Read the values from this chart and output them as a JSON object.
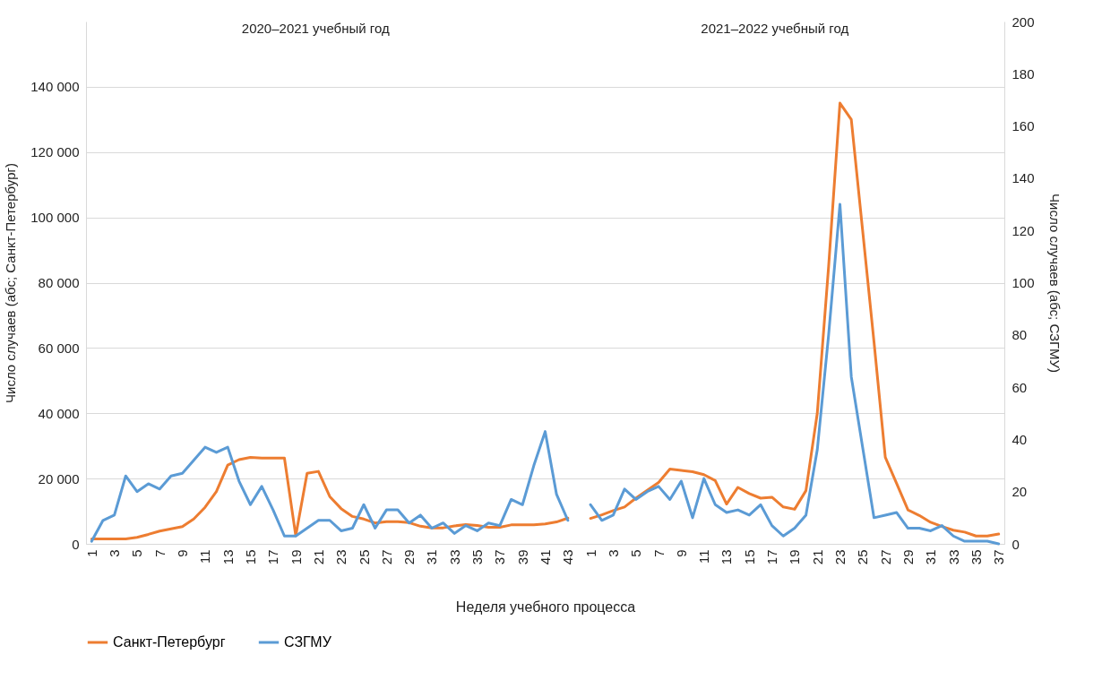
{
  "chart_data": {
    "type": "line",
    "annotations": [
      "2020–2021 учебный год",
      "2021–2022 учебный год"
    ],
    "xlabel": "Неделя учебного процесса",
    "ylabel": "Число случаев (абс; Санкт-Петербург)",
    "y2label": "Число случаев (абс; СЗГМУ)",
    "categories": [
      "1",
      null,
      "3",
      null,
      "5",
      null,
      "7",
      null,
      "9",
      null,
      "11",
      null,
      "13",
      null,
      "15",
      null,
      "17",
      null,
      "19",
      null,
      "21",
      null,
      "23",
      null,
      "25",
      null,
      "27",
      null,
      "29",
      null,
      "31",
      null,
      "33",
      null,
      "35",
      null,
      "37",
      null,
      "39",
      null,
      "41",
      null,
      "43",
      null,
      "1",
      null,
      "3",
      null,
      "5",
      null,
      "7",
      null,
      "9",
      null,
      "11",
      null,
      "13",
      null,
      "15",
      null,
      "17",
      null,
      "19",
      null,
      "21",
      null,
      "23",
      null,
      "25",
      null,
      "27",
      null,
      "29",
      null,
      "31",
      null,
      "33",
      null,
      "35",
      null,
      "37"
    ],
    "series": [
      {
        "name": "Санкт-Петербург",
        "color": "#ed7d31",
        "values": [
          1500,
          1500,
          1500,
          1500,
          2000,
          2900,
          3900,
          4600,
          5300,
          7600,
          11200,
          16000,
          24100,
          25800,
          26500,
          26300,
          26300,
          26300,
          2500,
          21600,
          22200,
          14500,
          10800,
          8400,
          7600,
          6400,
          6800,
          6800,
          6500,
          5400,
          4900,
          4900,
          5500,
          5900,
          5600,
          5100,
          5100,
          5800,
          5800,
          5800,
          6100,
          6700,
          7900,
          null,
          7800,
          8900,
          10200,
          11300,
          14000,
          16400,
          18800,
          22900,
          22500,
          22100,
          21200,
          19400,
          12200,
          17300,
          15400,
          14000,
          14300,
          11300,
          10600,
          16300,
          40000,
          85000,
          135000,
          130000,
          96000,
          62000,
          26500,
          18500,
          10400,
          8700,
          6600,
          5300,
          4200,
          3600,
          2400,
          2400,
          3000
        ]
      },
      {
        "name": "СЗГМУ",
        "color": "#5b9bd5",
        "axis": "y2",
        "values": [
          1,
          9,
          11,
          26,
          20,
          23,
          21,
          26,
          27,
          32,
          37,
          35,
          37,
          24,
          15,
          22,
          13,
          3,
          3,
          6,
          9,
          9,
          5,
          6,
          15,
          6,
          13,
          13,
          8,
          11,
          6,
          8,
          4,
          7,
          5,
          8,
          7,
          17,
          15,
          30,
          43,
          19,
          9,
          null,
          15,
          9,
          11,
          21,
          17,
          20,
          22,
          17,
          24,
          10,
          25,
          15,
          12,
          13,
          11,
          15,
          7,
          3,
          6,
          11,
          36,
          80,
          130,
          64,
          37,
          10,
          11,
          12,
          6,
          6,
          5,
          7,
          3,
          1,
          1,
          1,
          0
        ]
      }
    ],
    "ylim": [
      0,
      160000
    ],
    "yticks": [
      {
        "value": 0,
        "label": "0"
      },
      {
        "value": 20000,
        "label": "20 000"
      },
      {
        "value": 40000,
        "label": "40 000"
      },
      {
        "value": 60000,
        "label": "60 000"
      },
      {
        "value": 80000,
        "label": "80 000"
      },
      {
        "value": 100000,
        "label": "100 000"
      },
      {
        "value": 120000,
        "label": "120 000"
      },
      {
        "value": 140000,
        "label": "140 000"
      }
    ],
    "y2lim": [
      0,
      200
    ],
    "y2ticks": [
      0,
      20,
      40,
      60,
      80,
      100,
      120,
      140,
      160,
      180,
      200
    ],
    "grid": "y",
    "legend": "bottom",
    "line_style": "solid"
  }
}
